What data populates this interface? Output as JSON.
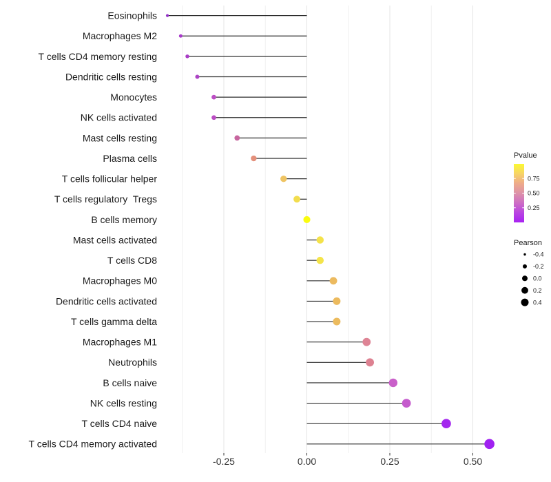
{
  "chart_data": {
    "type": "scatter",
    "variant": "lollipop",
    "title": "",
    "xlabel": "",
    "ylabel": "",
    "xlim": [
      -0.45,
      0.58
    ],
    "x_ticks": [
      -0.25,
      0.0,
      0.25,
      0.5
    ],
    "x_tick_labels": [
      "-0.25",
      "0.00",
      "0.25",
      "0.50"
    ],
    "x_major_gridlines": [
      -0.25,
      0.0,
      0.25,
      0.5
    ],
    "x_minor_gridlines": [
      -0.375,
      -0.125,
      0.125,
      0.375
    ],
    "grid": "vertical-only",
    "categories": [
      "Eosinophils",
      "Macrophages M2",
      "T cells CD4 memory resting",
      "Dendritic cells resting",
      "Monocytes",
      "NK cells activated",
      "Mast cells resting",
      "Plasma cells",
      "T cells follicular helper",
      "T cells regulatory  Tregs",
      "B cells memory",
      "Mast cells activated",
      "T cells CD8",
      "Macrophages M0",
      "Dendritic cells activated",
      "T cells gamma delta",
      "Macrophages M1",
      "Neutrophils",
      "B cells naive",
      "NK cells resting",
      "T cells CD4 naive",
      "T cells CD4 memory activated"
    ],
    "series": [
      {
        "name": "Pearson correlation",
        "values": [
          -0.42,
          -0.38,
          -0.36,
          -0.33,
          -0.28,
          -0.28,
          -0.21,
          -0.16,
          -0.07,
          -0.03,
          0.0,
          0.04,
          0.04,
          0.08,
          0.09,
          0.09,
          0.18,
          0.19,
          0.26,
          0.3,
          0.42,
          0.55
        ]
      },
      {
        "name": "Pvalue (estimated from color)",
        "values": [
          0.08,
          0.12,
          0.13,
          0.15,
          0.22,
          0.21,
          0.38,
          0.58,
          0.73,
          0.84,
          0.97,
          0.86,
          0.86,
          0.7,
          0.7,
          0.7,
          0.47,
          0.46,
          0.25,
          0.23,
          0.04,
          0.03
        ]
      }
    ],
    "point_colors": [
      "#9331c8",
      "#a83aca",
      "#aa3dc7",
      "#ad43c5",
      "#bc4fc4",
      "#bb4dc3",
      "#c7669f",
      "#e4907b",
      "#efc463",
      "#f2dd4e",
      "#fafc0f",
      "#f4e24a",
      "#f4e44a",
      "#ecba5f",
      "#ecba5e",
      "#ecbb5e",
      "#de8495",
      "#dd8191",
      "#c95fc9",
      "#c55bcd",
      "#a428ee",
      "#a021f1"
    ],
    "stem_color": "#2d2d2d",
    "legend_position": "right",
    "legends": {
      "color": {
        "title": "Pvalue",
        "tick_labels": [
          "0.75",
          "0.50",
          "0.25"
        ],
        "tick_values": [
          0.75,
          0.5,
          0.25
        ],
        "range": [
          0,
          1
        ],
        "gradient_top_to_bottom": [
          "#fbf931",
          "#f7d467",
          "#eeab89",
          "#dd92a8",
          "#cd6dc4",
          "#b945e1",
          "#a822f2"
        ]
      },
      "size": {
        "title": "Pearson",
        "entries": [
          {
            "label": "-0.4",
            "r": 1.7
          },
          {
            "label": "-0.2",
            "r": 3.0
          },
          {
            "label": "0.0",
            "r": 4.0
          },
          {
            "label": "0.2",
            "r": 4.9
          },
          {
            "label": "0.4",
            "r": 5.5
          }
        ],
        "dot_color": "#000000"
      }
    }
  }
}
